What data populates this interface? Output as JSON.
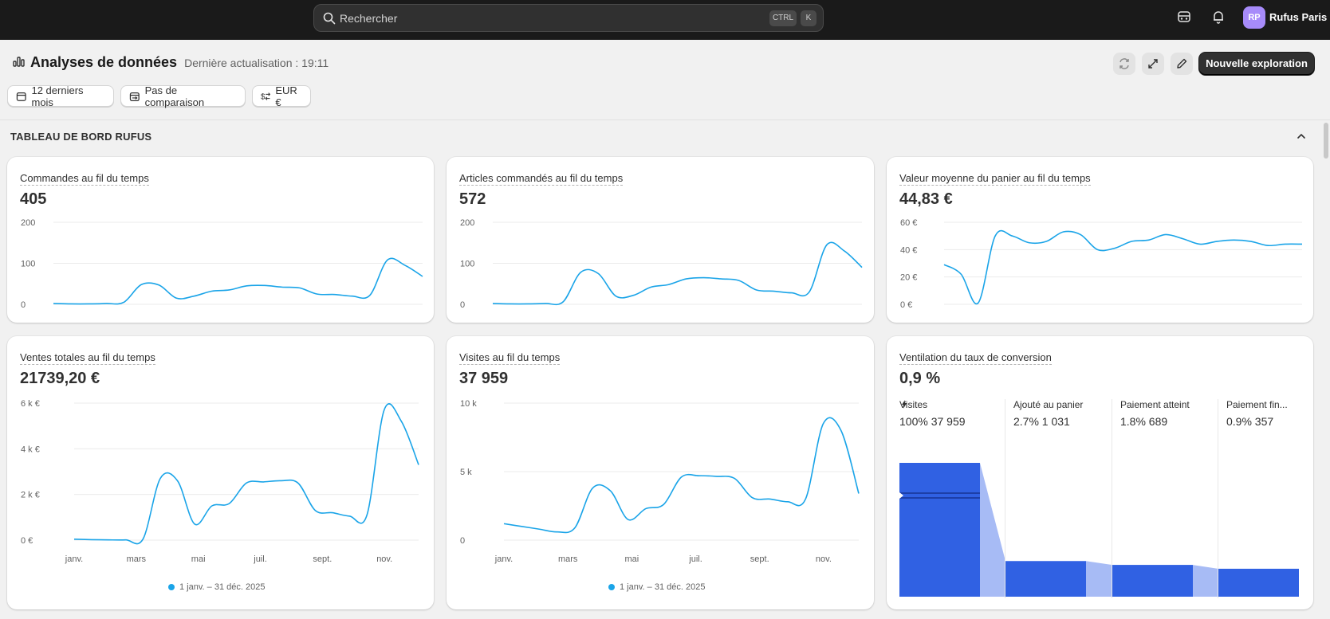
{
  "topbar": {
    "search_placeholder": "Rechercher",
    "shortcut_ctrl": "CTRL",
    "shortcut_k": "K",
    "user_initials": "RP",
    "user_name": "Rufus Paris"
  },
  "header": {
    "title": "Analyses de données",
    "subtitle": "Dernière actualisation : 19:11",
    "primary_button": "Nouvelle exploration"
  },
  "filters": {
    "period": "12 derniers mois",
    "comparison": "Pas de comparaison",
    "currency": "EUR €"
  },
  "section": {
    "title": "TABLEAU DE BORD RUFUS"
  },
  "cards": {
    "orders": {
      "title": "Commandes au fil du temps",
      "value": "405"
    },
    "items": {
      "title": "Articles commandés au fil du temps",
      "value": "572"
    },
    "aov": {
      "title": "Valeur moyenne du panier au fil du temps",
      "value": "44,83 €"
    },
    "sales": {
      "title": "Ventes totales au fil du temps",
      "value": "21739,20 €",
      "legend": "1 janv. – 31 déc. 2025"
    },
    "visits": {
      "title": "Visites au fil du temps",
      "value": "37 959",
      "legend": "1 janv. – 31 déc. 2025"
    },
    "conversion": {
      "title": "Ventilation du taux de conversion",
      "value": "0,9 %",
      "steps": [
        {
          "label": "Visites",
          "value": "100% 37 959"
        },
        {
          "label": "Ajouté au panier",
          "value": "2.7% 1 031"
        },
        {
          "label": "Paiement atteint",
          "value": "1.8% 689"
        },
        {
          "label": "Paiement fin...",
          "value": "0.9% 357"
        }
      ]
    }
  },
  "colors": {
    "line": "#1aa4e8",
    "funnel": "#3061e3",
    "funnel_light": "#a7bbf5"
  },
  "chart_data": [
    {
      "id": "orders",
      "type": "line",
      "title": "Commandes au fil du temps",
      "ylim": [
        0,
        200
      ],
      "yticks": [
        "0",
        "100",
        "200"
      ],
      "values": [
        2,
        1,
        1,
        2,
        5,
        48,
        47,
        15,
        20,
        32,
        35,
        45,
        46,
        42,
        40,
        25,
        24,
        20,
        22,
        108,
        95,
        68
      ]
    },
    {
      "id": "items",
      "type": "line",
      "title": "Articles commandés au fil du temps",
      "ylim": [
        0,
        200
      ],
      "yticks": [
        "0",
        "100",
        "200"
      ],
      "values": [
        2,
        1,
        1,
        2,
        6,
        78,
        75,
        20,
        22,
        42,
        48,
        62,
        65,
        62,
        58,
        35,
        32,
        28,
        30,
        145,
        130,
        90
      ]
    },
    {
      "id": "aov",
      "type": "line",
      "title": "Valeur moyenne du panier au fil du temps",
      "ylim": [
        0,
        60
      ],
      "yticks": [
        "0 €",
        "20 €",
        "40 €",
        "60 €"
      ],
      "values": [
        29,
        22,
        1,
        50,
        50,
        45,
        46,
        53,
        51,
        40,
        41,
        46,
        47,
        51,
        48,
        44,
        46,
        47,
        46,
        43,
        44,
        44
      ]
    },
    {
      "id": "sales",
      "type": "line",
      "title": "Ventes totales au fil du temps",
      "ylim": [
        0,
        6000
      ],
      "yticks": [
        "0 €",
        "2 k €",
        "4 k €",
        "6 k €"
      ],
      "xticks": [
        "janv.",
        "mars",
        "mai",
        "juil.",
        "sept.",
        "nov."
      ],
      "values": [
        40,
        20,
        10,
        10,
        50,
        2700,
        2600,
        700,
        1500,
        1600,
        2500,
        2550,
        2600,
        2500,
        1300,
        1200,
        1050,
        1100,
        5700,
        5200,
        3300
      ],
      "legend": "1 janv. – 31 déc. 2025"
    },
    {
      "id": "visits",
      "type": "line",
      "title": "Visites au fil du temps",
      "ylim": [
        0,
        10000
      ],
      "yticks": [
        "0",
        "5 k",
        "10 k"
      ],
      "xticks": [
        "janv.",
        "mars",
        "mai",
        "juil.",
        "sept.",
        "nov."
      ],
      "values": [
        1200,
        1000,
        800,
        600,
        900,
        3800,
        3600,
        1500,
        2300,
        2600,
        4600,
        4700,
        4650,
        4500,
        3100,
        3000,
        2800,
        3000,
        8500,
        8000,
        3400
      ],
      "legend": "1 janv. – 31 déc. 2025"
    },
    {
      "id": "conversion",
      "type": "bar",
      "title": "Ventilation du taux de conversion",
      "categories": [
        "Visites",
        "Ajouté au panier",
        "Paiement atteint",
        "Paiement fin..."
      ],
      "values": [
        37959,
        1031,
        689,
        357
      ],
      "percent": [
        100,
        2.7,
        1.8,
        0.9
      ]
    }
  ]
}
